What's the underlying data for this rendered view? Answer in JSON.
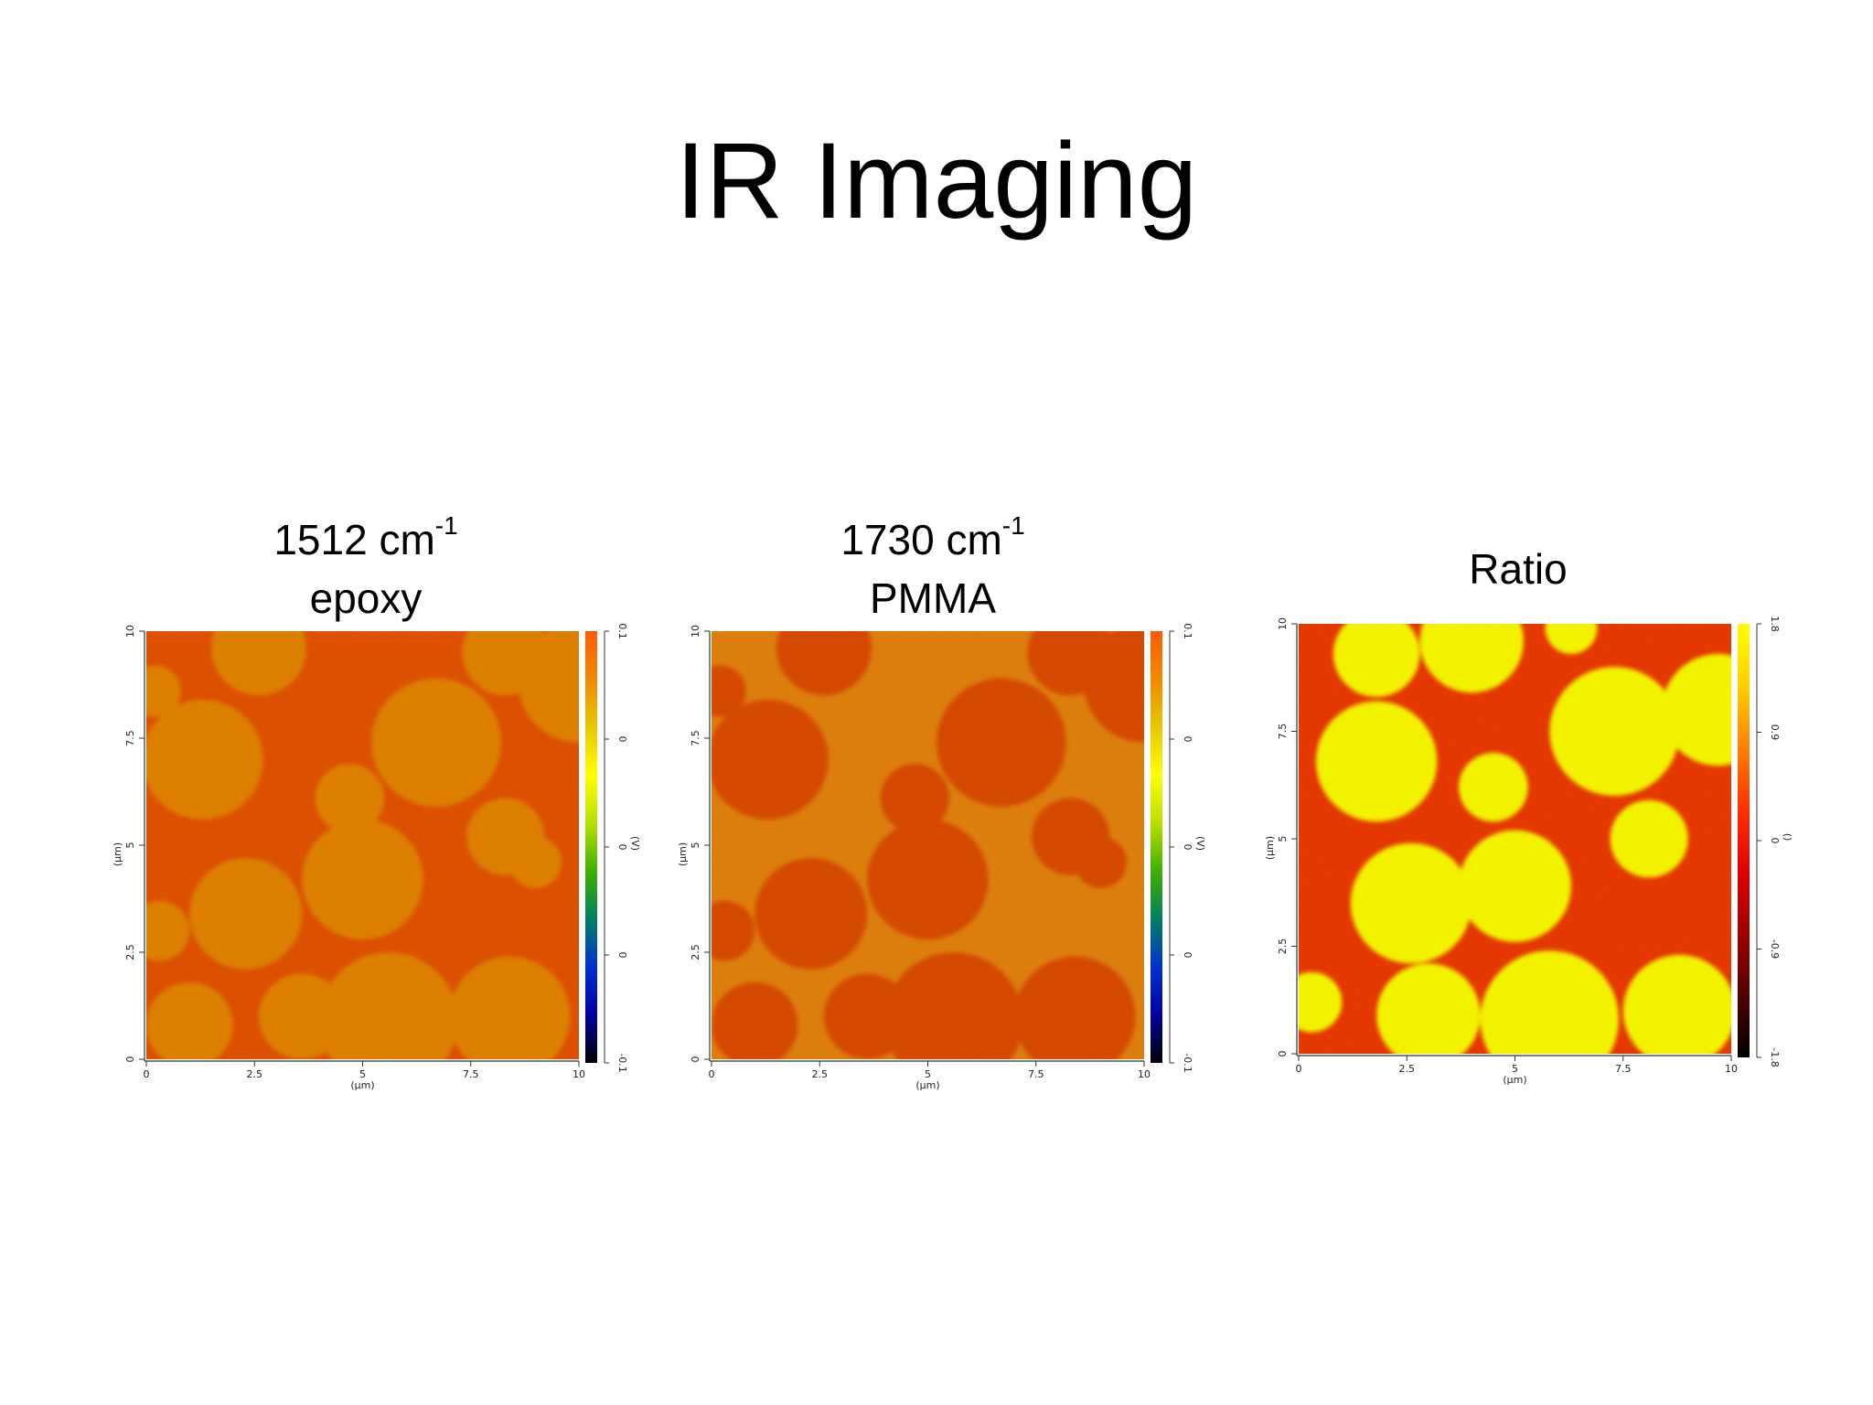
{
  "slide": {
    "title": "IR Imaging",
    "captions": [
      {
        "main": "1512 cm",
        "sup": "-1",
        "sub": "epoxy"
      },
      {
        "main": "1730 cm",
        "sup": "-1",
        "sub": "PMMA"
      },
      {
        "main": "Ratio",
        "sup": "",
        "sub": ""
      }
    ]
  },
  "chart_data": [
    {
      "type": "heatmap",
      "title": "1512 cm-1 epoxy",
      "xlabel": "(µm)",
      "ylabel": "(µm)",
      "xlim": [
        0,
        10
      ],
      "ylim": [
        0,
        10
      ],
      "x_ticks": [
        "0",
        "2.5",
        "5",
        "7.5",
        "10"
      ],
      "y_ticks": [
        "0",
        "2.5",
        "5",
        "7.5",
        "10"
      ],
      "colorbar": {
        "label": "(V)",
        "ticks": [
          "0.1",
          "0",
          "0",
          "0",
          "-0.1"
        ],
        "colors": [
          "#ff5a00",
          "#f08a00",
          "#e6c800",
          "#ffff00",
          "#b8e000",
          "#40b000",
          "#008060",
          "#0030d0",
          "#0000a0",
          "#000000"
        ]
      },
      "colors": {
        "matrix": "#e8560f",
        "domain": "#e8860f"
      },
      "background_value": "matrix",
      "domain_value": "domain",
      "domains": [
        {
          "x": 2.6,
          "y": 9.6,
          "r": 1.1
        },
        {
          "x": 8.3,
          "y": 9.5,
          "r": 1.0
        },
        {
          "x": 0.2,
          "y": 8.6,
          "r": 0.6
        },
        {
          "x": 1.3,
          "y": 7.0,
          "r": 1.4
        },
        {
          "x": 6.7,
          "y": 7.4,
          "r": 1.5
        },
        {
          "x": 10.0,
          "y": 8.8,
          "r": 1.4
        },
        {
          "x": 4.7,
          "y": 6.1,
          "r": 0.8
        },
        {
          "x": 8.3,
          "y": 5.2,
          "r": 0.9
        },
        {
          "x": 5.0,
          "y": 4.2,
          "r": 1.4
        },
        {
          "x": 2.3,
          "y": 3.4,
          "r": 1.3
        },
        {
          "x": 9.0,
          "y": 4.6,
          "r": 0.6
        },
        {
          "x": 1.0,
          "y": 0.8,
          "r": 1.0
        },
        {
          "x": 5.6,
          "y": 0.9,
          "r": 1.6
        },
        {
          "x": 8.4,
          "y": 1.0,
          "r": 1.4
        },
        {
          "x": 3.6,
          "y": 1.0,
          "r": 1.0
        },
        {
          "x": 0.3,
          "y": 3.0,
          "r": 0.7
        }
      ]
    },
    {
      "type": "heatmap",
      "title": "1730 cm-1 PMMA",
      "xlabel": "(µm)",
      "ylabel": "(µm)",
      "xlim": [
        0,
        10
      ],
      "ylim": [
        0,
        10
      ],
      "x_ticks": [
        "0",
        "2.5",
        "5",
        "7.5",
        "10"
      ],
      "y_ticks": [
        "0",
        "2.5",
        "5",
        "7.5",
        "10"
      ],
      "colorbar": {
        "label": "(V)",
        "ticks": [
          "0.1",
          "0",
          "0",
          "0",
          "-0.1"
        ],
        "colors": [
          "#ff5a00",
          "#f08a00",
          "#e6c800",
          "#ffff00",
          "#b8e000",
          "#40b000",
          "#008060",
          "#0030d0",
          "#0000a0",
          "#000000"
        ]
      },
      "colors": {
        "matrix": "#e88518",
        "domain": "#e04f0c"
      },
      "background_value": "matrix",
      "domain_value": "domain",
      "domains": [
        {
          "x": 2.6,
          "y": 9.6,
          "r": 1.1
        },
        {
          "x": 8.3,
          "y": 9.5,
          "r": 1.0
        },
        {
          "x": 0.2,
          "y": 8.6,
          "r": 0.6
        },
        {
          "x": 1.3,
          "y": 7.0,
          "r": 1.4
        },
        {
          "x": 6.7,
          "y": 7.4,
          "r": 1.5
        },
        {
          "x": 10.0,
          "y": 8.8,
          "r": 1.4
        },
        {
          "x": 4.7,
          "y": 6.1,
          "r": 0.8
        },
        {
          "x": 8.3,
          "y": 5.2,
          "r": 0.9
        },
        {
          "x": 5.0,
          "y": 4.2,
          "r": 1.4
        },
        {
          "x": 2.3,
          "y": 3.4,
          "r": 1.3
        },
        {
          "x": 9.0,
          "y": 4.6,
          "r": 0.6
        },
        {
          "x": 1.0,
          "y": 0.8,
          "r": 1.0
        },
        {
          "x": 5.6,
          "y": 0.9,
          "r": 1.6
        },
        {
          "x": 8.4,
          "y": 1.0,
          "r": 1.4
        },
        {
          "x": 3.6,
          "y": 1.0,
          "r": 1.0
        },
        {
          "x": 0.3,
          "y": 3.0,
          "r": 0.7
        }
      ]
    },
    {
      "type": "heatmap",
      "title": "Ratio",
      "xlabel": "(µm)",
      "ylabel": "(µm)",
      "xlim": [
        0,
        10
      ],
      "ylim": [
        0,
        10
      ],
      "x_ticks": [
        "0",
        "2.5",
        "5",
        "7.5",
        "10"
      ],
      "y_ticks": [
        "0",
        "2.5",
        "5",
        "7.5",
        "10"
      ],
      "colorbar": {
        "label": "()",
        "ticks": [
          "1.8",
          "0.9",
          "0",
          "-0.9",
          "-1.8"
        ],
        "colors": [
          "#ffff00",
          "#ffd000",
          "#ff8000",
          "#ff3000",
          "#e00000",
          "#a00000",
          "#500000",
          "#000000"
        ]
      },
      "colors": {
        "matrix": "#f03c0a",
        "domain": "#ffff10"
      },
      "background_value": "matrix",
      "domain_value": "domain",
      "domains": [
        {
          "x": 1.8,
          "y": 9.3,
          "r": 1.0
        },
        {
          "x": 4.0,
          "y": 9.6,
          "r": 1.2
        },
        {
          "x": 7.3,
          "y": 7.5,
          "r": 1.5
        },
        {
          "x": 9.7,
          "y": 8.0,
          "r": 1.3
        },
        {
          "x": 1.8,
          "y": 6.8,
          "r": 1.4
        },
        {
          "x": 4.5,
          "y": 6.2,
          "r": 0.8
        },
        {
          "x": 8.1,
          "y": 5.0,
          "r": 0.9
        },
        {
          "x": 2.6,
          "y": 3.5,
          "r": 1.4
        },
        {
          "x": 5.0,
          "y": 3.9,
          "r": 1.3
        },
        {
          "x": 3.0,
          "y": 0.9,
          "r": 1.2
        },
        {
          "x": 5.8,
          "y": 0.8,
          "r": 1.6
        },
        {
          "x": 8.8,
          "y": 1.0,
          "r": 1.3
        },
        {
          "x": 0.3,
          "y": 1.2,
          "r": 0.7
        },
        {
          "x": 6.3,
          "y": 9.9,
          "r": 0.6
        }
      ]
    }
  ]
}
